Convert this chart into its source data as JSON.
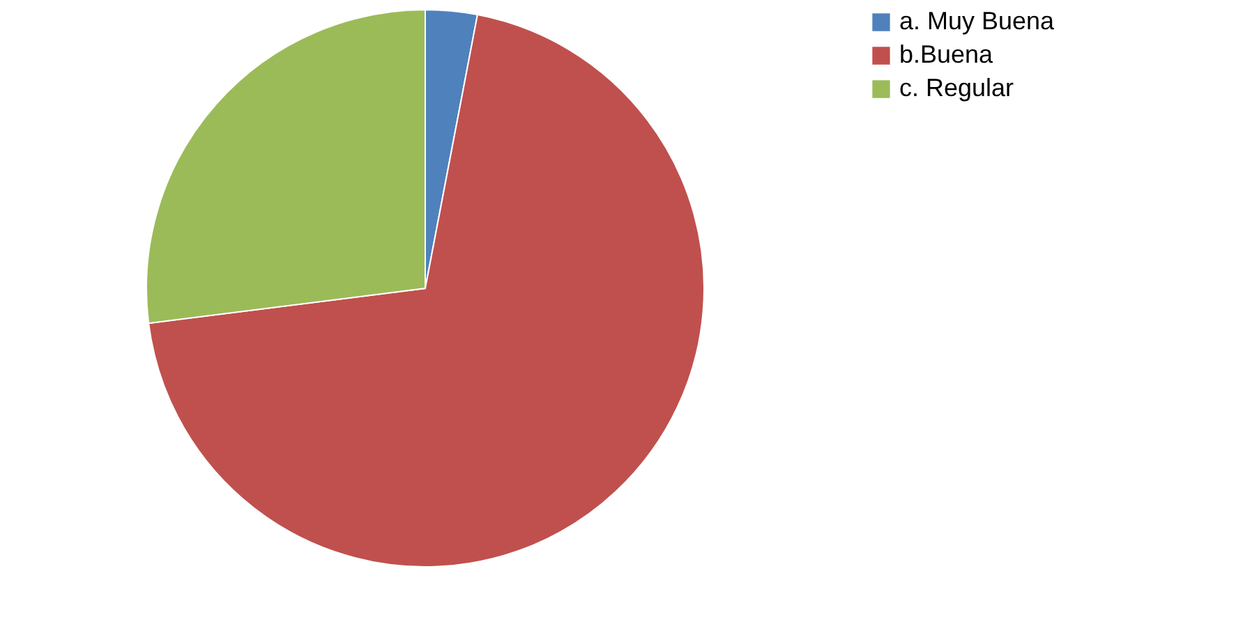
{
  "chart_data": {
    "type": "pie",
    "categories": [
      "a. Muy Buena",
      "b.Buena",
      "c. Regular"
    ],
    "values": [
      3,
      70,
      27
    ],
    "colors": [
      "#4f81bd",
      "#c0504d",
      "#9bbb59"
    ],
    "legend": "right"
  }
}
